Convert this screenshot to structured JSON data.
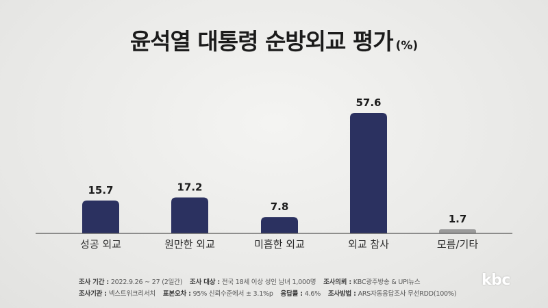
{
  "title": "윤석열 대통령 순방외교 평가",
  "unit": "(%)",
  "chart_data": {
    "type": "bar",
    "categories": [
      "성공 외교",
      "원만한 외교",
      "미흡한 외교",
      "외교 참사",
      "모름/기타"
    ],
    "values": [
      15.7,
      17.2,
      7.8,
      57.6,
      1.7
    ],
    "value_labels": [
      "15.7",
      "17.2",
      "7.8",
      "57.6",
      "1.7"
    ],
    "bar_colors": [
      "#2b3160",
      "#2b3160",
      "#2b3160",
      "#2b3160",
      "#9a9a9a"
    ],
    "ylim": [
      0,
      60
    ],
    "grid": false,
    "legend": "none"
  },
  "footer": {
    "line1": [
      {
        "label": "조사 기간 :",
        "value": "2022.9.26 ~ 27 (2일간)"
      },
      {
        "label": "조사 대상 :",
        "value": "전국 18세 이상 성인 남녀 1,000명"
      },
      {
        "label": "조사의뢰 :",
        "value": "KBC광주방송 & UPI뉴스"
      }
    ],
    "line2": [
      {
        "label": "조사기관 :",
        "value": "넥스트위크리서치"
      },
      {
        "label": "표본오차 :",
        "value": "95% 신뢰수준에서 ± 3.1%p"
      },
      {
        "label": "응답률 :",
        "value": "4.6%"
      },
      {
        "label": "조사방법 :",
        "value": "ARS자동응답조사 무선RDD(100%)"
      }
    ]
  },
  "logo": "kbc"
}
